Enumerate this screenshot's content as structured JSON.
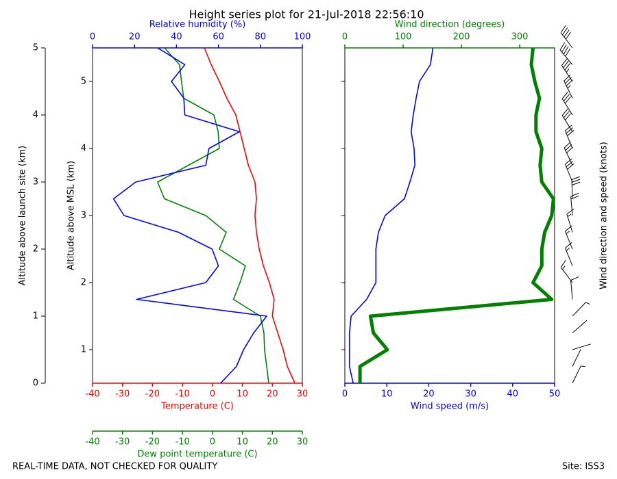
{
  "chart_data": {
    "type": "profile",
    "title": "Height series plot for 21-Jul-2018 22:56:10",
    "ylabel": "Altitude above launch site (km)",
    "y": [
      0,
      0.25,
      0.5,
      0.75,
      1,
      1.25,
      1.5,
      1.75,
      2,
      2.25,
      2.5,
      2.75,
      3,
      3.25,
      3.5,
      3.75,
      4,
      4.25,
      4.5,
      4.75,
      5
    ],
    "ylim": [
      0,
      5
    ],
    "yticks": [
      0,
      1,
      2,
      3,
      4,
      5
    ],
    "y2label": "Altitude above MSL (km)",
    "y2lim": [
      0.5,
      5.5
    ],
    "y2ticks": [
      1,
      2,
      3,
      4,
      5
    ],
    "panels": [
      {
        "axes": [
          {
            "label": "Temperature (C)",
            "color": "#ff0000",
            "position": "bottom",
            "lim": [
              -40,
              30
            ],
            "ticks": [
              -40,
              -30,
              -20,
              -10,
              0,
              10,
              20,
              30
            ]
          },
          {
            "label": "Relative humidity (%)",
            "color": "#0000ff",
            "position": "top",
            "lim": [
              0,
              100
            ],
            "ticks": [
              0,
              20,
              40,
              60,
              80,
              100
            ]
          },
          {
            "label": "Dew point temperature (C)",
            "color": "#008000",
            "position": "offset",
            "lim": [
              -40,
              30
            ],
            "ticks": [
              -40,
              -30,
              -20,
              -10,
              0,
              10,
              20,
              30
            ]
          }
        ],
        "series": [
          {
            "axis": 0,
            "color": "#ff0000",
            "linewidth": 1.6,
            "values": [
              27.5,
              25,
              23.6,
              21.8,
              20,
              20.6,
              19,
              17,
              15.6,
              14.7,
              14.2,
              14.7,
              14.2,
              12,
              10.6,
              9.2,
              7.8,
              4.8,
              2.3,
              -0.4,
              -2.7
            ]
          },
          {
            "axis": 2,
            "color": "#008000",
            "linewidth": 1.6,
            "values": [
              18.8,
              18.1,
              17.4,
              17.2,
              16,
              7,
              9.2,
              11,
              2.3,
              4.6,
              -2.2,
              -16,
              -18.3,
              -8,
              2.3,
              1.9,
              0.5,
              -9.6,
              -10.3,
              -11,
              -16
            ]
          },
          {
            "axis": 1,
            "color": "#0000ff",
            "linewidth": 1.6,
            "values": [
              61,
              68.6,
              72,
              76.8,
              83,
              21,
              54,
              60,
              57,
              41,
              15,
              10,
              20.6,
              54,
              55.5,
              70,
              44,
              43.5,
              37.6,
              44,
              31
            ]
          }
        ]
      },
      {
        "axes": [
          {
            "label": "Wind speed (m/s)",
            "color": "#0000ff",
            "position": "bottom",
            "lim": [
              0,
              50
            ],
            "ticks": [
              0,
              10,
              20,
              30,
              40,
              50
            ]
          },
          {
            "label": "Wind direction (degrees)",
            "color": "#008000",
            "position": "top",
            "lim": [
              0,
              360
            ],
            "ticks": [
              0,
              100,
              200,
              300
            ]
          }
        ],
        "series": [
          {
            "axis": 0,
            "color": "#0000ff",
            "linewidth": 1.6,
            "values": [
              2,
              1.1,
              1.1,
              1.1,
              1.5,
              5.2,
              7.4,
              7.4,
              7.4,
              8,
              9.6,
              14.2,
              15.5,
              16.7,
              16.5,
              15.8,
              16.3,
              17,
              17.8,
              20.4,
              21
            ]
          },
          {
            "axis": 1,
            "color": "#008000",
            "linewidth": 5,
            "values": [
              26,
              26,
              73,
              49,
              44,
              355,
              323,
              338,
              338,
              343,
              355,
              358,
              338,
              335,
              338,
              328,
              328,
              334,
              326,
              320,
              323
            ]
          }
        ]
      }
    ],
    "barbs_label": "Wind direction and speed (knots)",
    "footer_left": "REAL-TIME DATA, NOT CHECKED FOR QUALITY",
    "footer_right": "Site: ISS3"
  }
}
